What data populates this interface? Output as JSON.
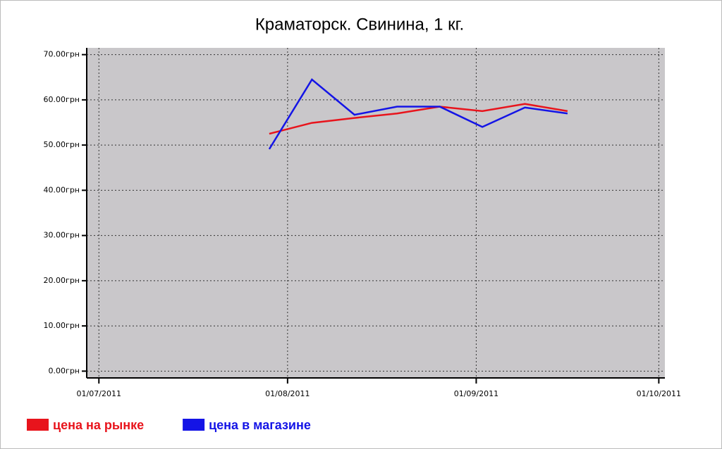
{
  "chart_data": {
    "type": "line",
    "title": "Краматорск. Свинина, 1 кг.",
    "x": [
      "29/07/2011",
      "05/08/2011",
      "12/08/2011",
      "19/08/2011",
      "26/08/2011",
      "02/09/2011",
      "09/09/2011",
      "16/09/2011"
    ],
    "series": [
      {
        "name": "цена на рынке",
        "color": "#e8141c",
        "values": [
          52.5,
          54.9,
          56,
          57,
          58.5,
          57.5,
          59.1,
          57.5
        ]
      },
      {
        "name": "цена в магазине",
        "color": "#1414e6",
        "values": [
          49.1,
          64.5,
          56.7,
          58.5,
          58.5,
          54,
          58.3,
          57
        ]
      }
    ],
    "xlim": [
      "29/06/2011",
      "02/10/2011"
    ],
    "xticks": [
      "01/07/2011",
      "01/08/2011",
      "01/09/2011",
      "01/10/2011"
    ],
    "ylim": [
      -1.5,
      71.5
    ],
    "yticks": [
      {
        "value": 0,
        "label": "0.00грн"
      },
      {
        "value": 10,
        "label": "10.00грн"
      },
      {
        "value": 20,
        "label": "20.00грн"
      },
      {
        "value": 30,
        "label": "30.00грн"
      },
      {
        "value": 40,
        "label": "40.00грн"
      },
      {
        "value": 50,
        "label": "50.00грн"
      },
      {
        "value": 60,
        "label": "60.00грн"
      },
      {
        "value": 70,
        "label": "70.00грн"
      }
    ],
    "grid": true,
    "legend": "bottom-left"
  }
}
